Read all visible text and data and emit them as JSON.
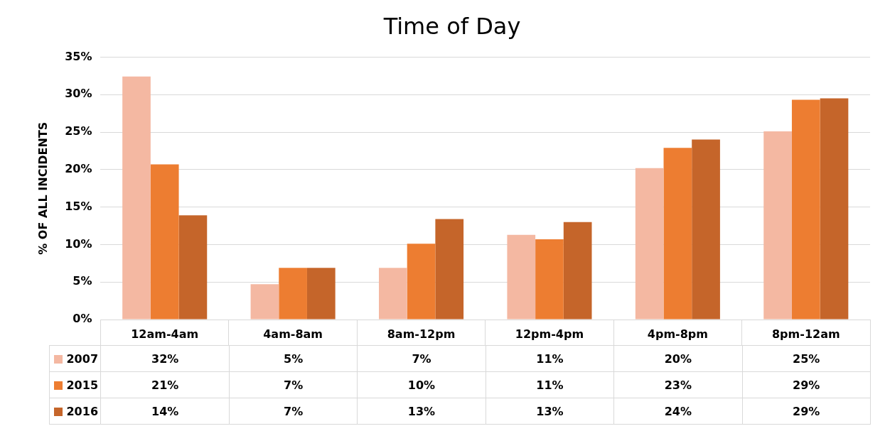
{
  "chart_data": {
    "type": "bar",
    "title": "Time of Day",
    "ylabel": "% OF ALL INCIDENTS",
    "categories": [
      "12am-4am",
      "4am-8am",
      "8am-12pm",
      "12pm-4pm",
      "4pm-8pm",
      "8pm-12am"
    ],
    "series": [
      {
        "name": "2007",
        "color": "#f4b8a2",
        "values": [
          32.4,
          4.7,
          6.9,
          11.3,
          20.2,
          25.1
        ],
        "value_labels": [
          "32%",
          "5%",
          "7%",
          "11%",
          "20%",
          "25%"
        ]
      },
      {
        "name": "2015",
        "color": "#ed7d31",
        "values": [
          20.7,
          6.9,
          10.1,
          10.7,
          22.9,
          29.3
        ],
        "value_labels": [
          "21%",
          "7%",
          "10%",
          "11%",
          "23%",
          "29%"
        ]
      },
      {
        "name": "2016",
        "color": "#c5652a",
        "values": [
          13.9,
          6.9,
          13.4,
          13.0,
          24.0,
          29.5
        ],
        "value_labels": [
          "14%",
          "7%",
          "13%",
          "13%",
          "24%",
          "29%"
        ]
      }
    ],
    "ylim": [
      0,
      35
    ],
    "yticks": [
      {
        "value": 0,
        "label": "0%"
      },
      {
        "value": 5,
        "label": "5%"
      },
      {
        "value": 10,
        "label": "10%"
      },
      {
        "value": 15,
        "label": "15%"
      },
      {
        "value": 20,
        "label": "20%"
      },
      {
        "value": 25,
        "label": "25%"
      },
      {
        "value": 30,
        "label": "30%"
      },
      {
        "value": 35,
        "label": "35%"
      }
    ],
    "grid": "y",
    "legend": "bottom"
  }
}
